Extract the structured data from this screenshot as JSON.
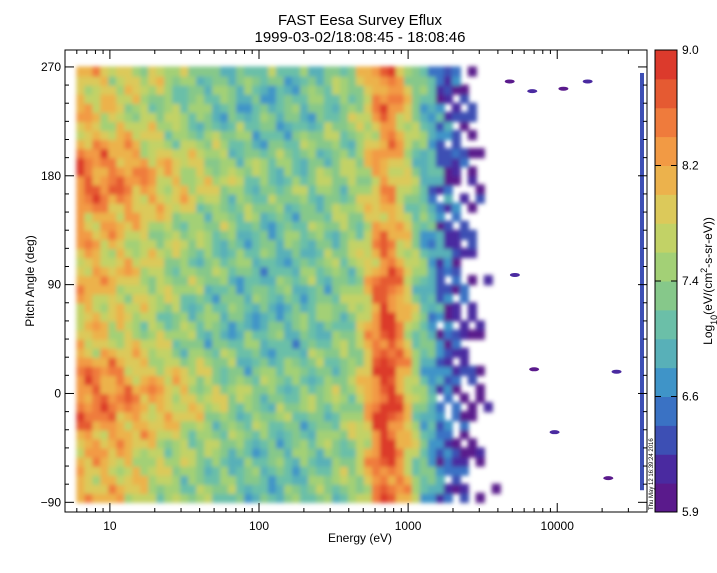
{
  "chart_data": {
    "type": "heatmap",
    "title": "FAST  Eesa Survey Eflux",
    "subtitle": "1999-03-02/18:08:45 - 18:08:46",
    "xlabel": "Energy  (eV)",
    "ylabel": "Pitch Angle (deg)",
    "x_scale": "log",
    "xlim": [
      5,
      40000
    ],
    "ylim": [
      -98,
      284
    ],
    "x_ticks": [
      {
        "value": 10,
        "label": "10"
      },
      {
        "value": 100,
        "label": "100"
      },
      {
        "value": 1000,
        "label": "1000"
      },
      {
        "value": 10000,
        "label": "10000"
      }
    ],
    "y_ticks": [
      {
        "value": -90,
        "label": "−90"
      },
      {
        "value": 0,
        "label": "0"
      },
      {
        "value": 90,
        "label": "90"
      },
      {
        "value": 180,
        "label": "180"
      },
      {
        "value": 270,
        "label": "270"
      }
    ],
    "colorbar": {
      "label": "Log10(eV/(cm²-s-sr-eV))",
      "range": [
        5.9,
        9.0
      ],
      "ticks": [
        "5.9",
        "6.6",
        "7.4",
        "8.2",
        "9.0"
      ],
      "colors": [
        "#5a1a8c",
        "#4a2aa0",
        "#3d4fb4",
        "#3a72c4",
        "#3f94c8",
        "#58b0b8",
        "#6bbfa8",
        "#86c88a",
        "#a3d076",
        "#c2d266",
        "#dcc95a",
        "#ecb24c",
        "#f29a44",
        "#ef7b3c",
        "#e55a32",
        "#dc3a2c"
      ]
    },
    "energy_range_shown": [
      6,
      6000
    ],
    "pitch_range_shown": [
      -90,
      270
    ],
    "features": [
      "Flux peak (~8.8) near 700 eV across all pitch angles",
      "Elevated flux (~8.3) at low energies (6-40 eV)",
      "Flux drops below threshold above ~3000-5000 eV"
    ],
    "stamp": "Thu May 12 16:39:24 2016"
  }
}
